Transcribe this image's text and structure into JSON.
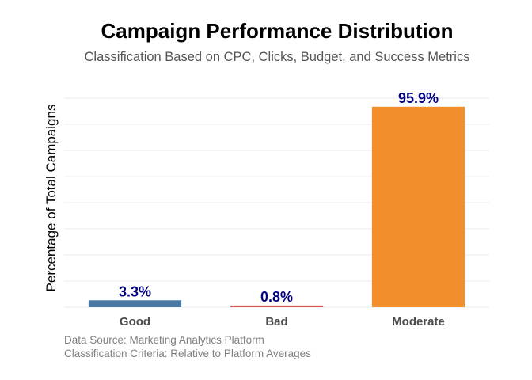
{
  "chart_data": {
    "type": "bar",
    "title": "Campaign Performance Distribution",
    "subtitle": "Classification Based on CPC, Clicks, Budget, and Success Metrics",
    "xlabel": "",
    "ylabel": "Percentage of Total Campaigns",
    "categories": [
      "Good",
      "Bad",
      "Moderate"
    ],
    "values": [
      3.3,
      0.8,
      95.9
    ],
    "data_labels": [
      "3.3%",
      "0.8%",
      "95.9%"
    ],
    "colors": [
      "#4a79a5",
      "#e15759",
      "#f28e2b"
    ],
    "label_color": "#000080",
    "ylim": [
      0,
      100
    ],
    "y_ticks_shown": false,
    "grid": true,
    "legend": "none",
    "caption_lines": [
      "Data Source: Marketing Analytics Platform",
      "Classification Criteria: Relative to Platform Averages"
    ]
  }
}
